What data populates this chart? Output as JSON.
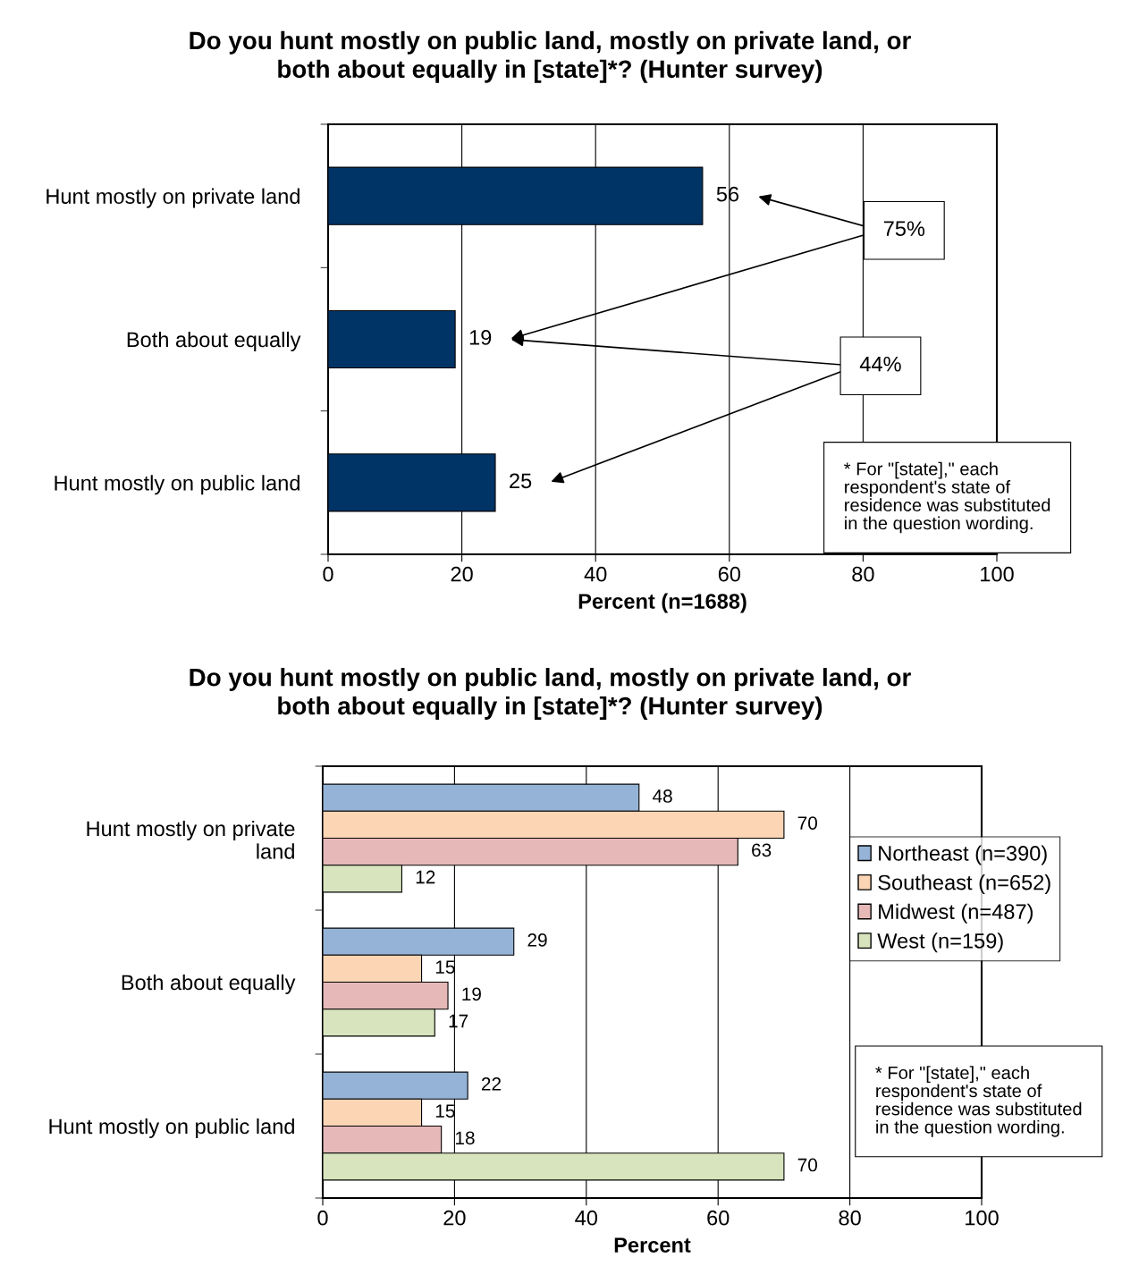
{
  "chart_data": [
    {
      "type": "bar",
      "orientation": "horizontal",
      "title": "Do you hunt mostly on public land, mostly on private land, or\nboth about equally in [state]*? (Hunter survey)",
      "categories": [
        "Hunt mostly on private land",
        "Both about equally",
        "Hunt mostly on public land"
      ],
      "series": [
        {
          "color": "#003366",
          "values": [
            56,
            19,
            25
          ]
        }
      ],
      "xlabel": "Percent (n=1688)",
      "xlim": [
        0,
        100
      ],
      "xticks": [
        0,
        20,
        40,
        60,
        80,
        100
      ],
      "grid": "x",
      "data_labels": true,
      "annotations": [
        "75%",
        "44%",
        "* For \"[state],\" each\nrespondent's state of\nresidence was substituted\nin the question wording."
      ]
    },
    {
      "type": "bar",
      "orientation": "horizontal",
      "title": "Do you hunt mostly on public land, mostly on private land, or\nboth about equally in [state]*? (Hunter survey)",
      "categories": [
        "Hunt mostly on private\nland",
        "Both about equally",
        "Hunt mostly on public land"
      ],
      "series": [
        {
          "name": "Northeast (n=390)",
          "color": "#95b3d7",
          "values": [
            48,
            29,
            22
          ]
        },
        {
          "name": "Southeast (n=652)",
          "color": "#fcd5b5",
          "values": [
            70,
            15,
            15
          ]
        },
        {
          "name": "Midwest (n=487)",
          "color": "#e6b9b8",
          "values": [
            63,
            19,
            18
          ]
        },
        {
          "name": "West (n=159)",
          "color": "#d7e4bd",
          "values": [
            12,
            17,
            70
          ]
        }
      ],
      "xlabel": "Percent",
      "xlim": [
        0,
        100
      ],
      "xticks": [
        0,
        20,
        40,
        60,
        80,
        100
      ],
      "grid": "x",
      "data_labels": true,
      "legend": "right",
      "annotations": [
        "* For \"[state],\" each\nrespondent's state of\nresidence was substituted\nin the question wording."
      ]
    }
  ]
}
